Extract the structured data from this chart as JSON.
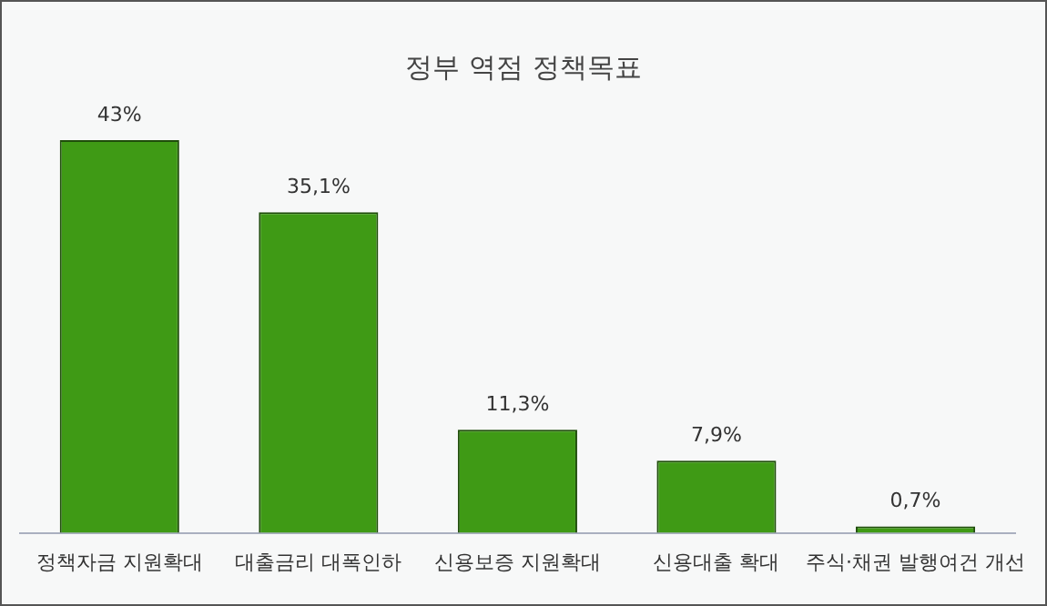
{
  "chart_data": {
    "type": "bar",
    "title": "정부 역점 정책목표",
    "categories": [
      "정책자금 지원확대",
      "대출금리 대폭인하",
      "신용보증 지원확대",
      "신용대출 확대",
      "주식·채권 발행여건 개선"
    ],
    "values": [
      43,
      35.1,
      11.3,
      7.9,
      0.7
    ],
    "value_labels": [
      "43%",
      "35,1%",
      "11,3%",
      "7,9%",
      "0,7%"
    ],
    "color": "#3f9a15",
    "grid": false,
    "legend": false
  }
}
